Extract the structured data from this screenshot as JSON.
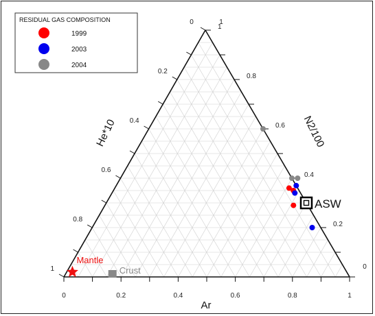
{
  "chart_data": {
    "type": "ternary-scatter",
    "axes": {
      "bottom": {
        "label": "Ar",
        "ticks": [
          "0",
          "0.2",
          "0.4",
          "0.6",
          "0.8",
          "1"
        ]
      },
      "left": {
        "label": "He*10",
        "ticks": [
          "0.2",
          "0.4",
          "0.6",
          "0.8",
          "1"
        ]
      },
      "right": {
        "label": "N2/100",
        "ticks": [
          "0.2",
          "0.4",
          "0.6",
          "0.8",
          "1"
        ]
      },
      "apex_labels": [
        "0",
        "1"
      ],
      "right_corner_label": "0",
      "grid_step": 0.05
    },
    "legend": {
      "title": "RESIDUAL GAS COMPOSITION",
      "placement": "top-left",
      "entries": [
        {
          "name": "1999",
          "color": "#ff0000"
        },
        {
          "name": "2003",
          "color": "#0000ee"
        },
        {
          "name": "2004",
          "color": "#888888"
        }
      ]
    },
    "series": [
      {
        "name": "1999",
        "color": "#ff0000",
        "points": [
          {
            "ar": 0.61,
            "n2": 0.36
          },
          {
            "ar": 0.63,
            "n2": 0.35
          },
          {
            "ar": 0.66,
            "n2": 0.29
          }
        ]
      },
      {
        "name": "2003",
        "color": "#0000ee",
        "points": [
          {
            "ar": 0.63,
            "n2": 0.37
          },
          {
            "ar": 0.64,
            "n2": 0.34
          },
          {
            "ar": 0.77,
            "n2": 0.2
          }
        ]
      },
      {
        "name": "2004",
        "color": "#888888",
        "points": [
          {
            "ar": 0.4,
            "n2": 0.6
          },
          {
            "ar": 0.6,
            "n2": 0.4
          },
          {
            "ar": 0.62,
            "n2": 0.4
          }
        ]
      }
    ],
    "annotations": [
      {
        "label": "ASW",
        "ar": 0.7,
        "n2": 0.3,
        "marker": "square-box",
        "color": "#000000"
      },
      {
        "label": "Mantle",
        "ar": 0.02,
        "n2": 0.02,
        "marker": "star",
        "color": "#ee1111"
      },
      {
        "label": "Crust",
        "ar": 0.17,
        "n2": 0.0,
        "marker": "square",
        "color": "#888888"
      }
    ]
  }
}
